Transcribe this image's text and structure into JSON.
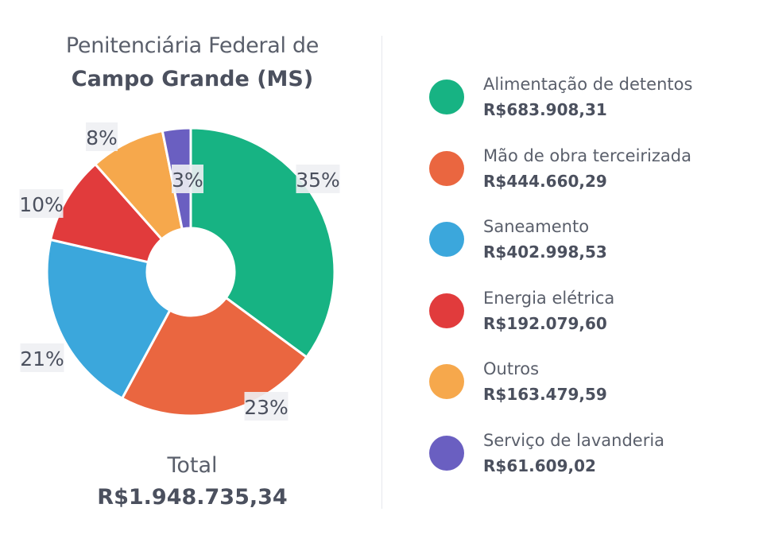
{
  "title_line1": "Penitenciária Federal de",
  "title_line2": "Campo Grande (MS)",
  "total_label": "Total",
  "total_value": "R$1.948.735,34",
  "chart_data": {
    "type": "pie",
    "donut": true,
    "categories": [
      "Alimentação de detentos",
      "Mão de obra terceirizada",
      "Saneamento",
      "Energia elétrica",
      "Outros",
      "Serviço de lavanderia"
    ],
    "values": [
      683908.31,
      444660.29,
      402998.53,
      192079.6,
      163479.59,
      61609.02
    ],
    "value_labels": [
      "R$683.908,31",
      "R$444.660,29",
      "R$402.998,53",
      "R$192.079,60",
      "R$163.479,59",
      "R$61.609,02"
    ],
    "percent_labels": [
      "35%",
      "23%",
      "21%",
      "10%",
      "8%",
      "3%"
    ],
    "colors": [
      "#17b383",
      "#ea6640",
      "#3ba7dc",
      "#e13b3c",
      "#f6a84c",
      "#6a5fc1"
    ],
    "legend_placement": "right"
  }
}
